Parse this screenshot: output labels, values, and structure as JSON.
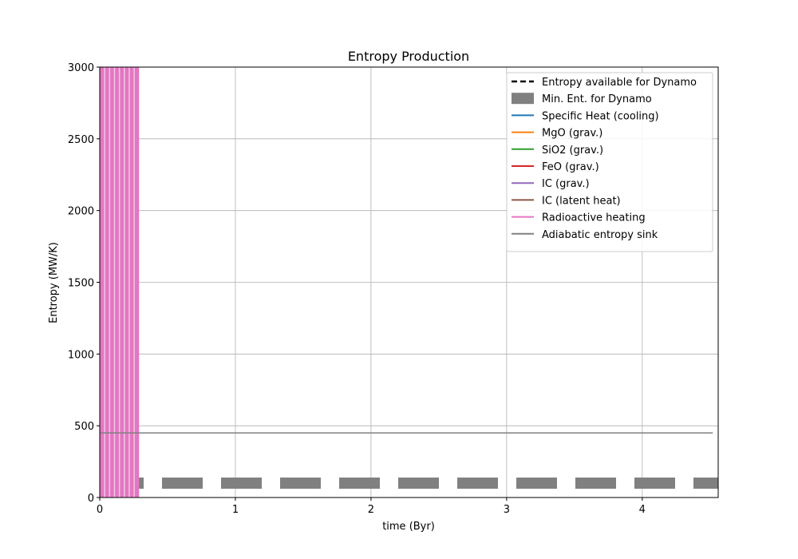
{
  "chart_data": {
    "type": "line",
    "title": "Entropy Production",
    "xlabel": "time (Byr)",
    "ylabel": "Entropy (MW/K)",
    "xlim": [
      0,
      4.56
    ],
    "ylim": [
      0,
      3000
    ],
    "xticks": [
      0,
      1,
      2,
      3,
      4
    ],
    "yticks": [
      0,
      500,
      1000,
      1500,
      2000,
      2500,
      3000
    ],
    "grid": true,
    "legend_position": "top-right",
    "series": [
      {
        "name": "Entropy available for Dynamo",
        "color": "#000000",
        "style": "dashed",
        "values": []
      },
      {
        "name": "Min. Ent. for Dynamo",
        "color": "#808080",
        "style": "thick-dashed",
        "x": [
          0,
          4.56
        ],
        "y": [
          100,
          100
        ]
      },
      {
        "name": "Specific Heat (cooling)",
        "color": "#1f77b4",
        "values": []
      },
      {
        "name": "MgO (grav.)",
        "color": "#ff7f0e",
        "values": []
      },
      {
        "name": "SiO2 (grav.)",
        "color": "#2ca02c",
        "values": []
      },
      {
        "name": "FeO (grav.)",
        "color": "#d62728",
        "values": []
      },
      {
        "name": "IC (grav.)",
        "color": "#9467bd",
        "values": []
      },
      {
        "name": "IC (latent heat)",
        "color": "#8c564b",
        "values": []
      },
      {
        "name": "Radioactive heating",
        "color": "#e377c2",
        "style": "filled-spikes",
        "x_range": [
          0,
          0.29
        ],
        "y_range": [
          0,
          3000
        ]
      },
      {
        "name": "Adiabatic entropy sink",
        "color": "#808080",
        "x": [
          0,
          4.52
        ],
        "y": [
          450,
          450
        ]
      }
    ]
  }
}
